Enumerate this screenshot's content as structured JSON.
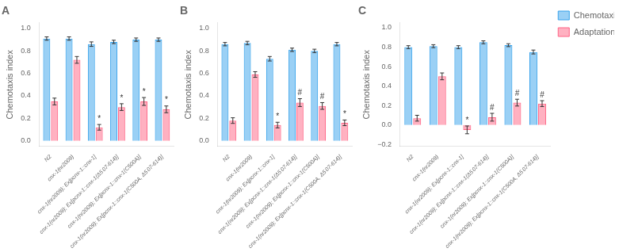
{
  "chart_data": [
    {
      "type": "bar",
      "title": "A",
      "ylabel": "Chemotaxis index",
      "categories": [
        "N2",
        "cnx-1(nr2009)",
        "cnx-1(nr2009); Ex[pcnx-1::cnx-1]",
        "cnx-1(nr2009); Ex[pcnx-1::cnx-1(Δ5 07-614)]",
        "cnx-1(nr2009); Ex[pcnx-1::cnx-1(C500A)]",
        "cnx-1(nr2009); Ex[pcnx-1::cnx-1(C500A, Δ5 07-614)]"
      ],
      "series": [
        {
          "name": "Chemotaxis",
          "values": [
            0.91,
            0.91,
            0.86,
            0.88,
            0.9,
            0.9
          ],
          "errors": [
            0.015,
            0.015,
            0.02,
            0.015,
            0.015,
            0.015
          ]
        },
        {
          "name": "Adaptation",
          "values": [
            0.35,
            0.72,
            0.12,
            0.3,
            0.35,
            0.28
          ],
          "errors": [
            0.03,
            0.03,
            0.025,
            0.03,
            0.035,
            0.03
          ],
          "annotations": [
            null,
            null,
            "*",
            "*",
            "*",
            "*"
          ]
        }
      ],
      "ylim": [
        -0.05,
        1.05
      ],
      "yticks": [
        {
          "value": 0,
          "label": "0.0"
        },
        0.2,
        0.4,
        0.6,
        0.8,
        {
          "value": 1.0,
          "label": "1.0"
        }
      ],
      "grid": false
    },
    {
      "type": "bar",
      "title": "B",
      "ylabel": "Chemotaxis index",
      "categories": [
        "N2",
        "cnx-1(nr2009)",
        "cnx-1(nr2009); Ex[pcnx-1::cnx-1]",
        "cnx-1(nr2009); Ex[pcnx-1::cnx-1(Δ5 07-614)]",
        "cnx-1(nr2009); Ex[pcnx-1::cnx-1(C500A)]",
        "cnx-1(nr2009); Ex[pcnx-1::cnx-1(C500A, Δ5 07-614)]"
      ],
      "series": [
        {
          "name": "Chemotaxis",
          "values": [
            0.86,
            0.87,
            0.73,
            0.81,
            0.8,
            0.86
          ],
          "errors": [
            0.015,
            0.015,
            0.02,
            0.015,
            0.015,
            0.015
          ]
        },
        {
          "name": "Adaptation",
          "values": [
            0.18,
            0.59,
            0.14,
            0.34,
            0.31,
            0.16
          ],
          "errors": [
            0.025,
            0.025,
            0.025,
            0.035,
            0.03,
            0.025
          ],
          "annotations": [
            null,
            null,
            "*",
            "#",
            "#",
            "*"
          ]
        }
      ],
      "ylim": [
        -0.05,
        1.05
      ],
      "yticks": [
        {
          "value": 0,
          "label": "0.0"
        },
        0.2,
        0.4,
        0.6,
        0.8,
        {
          "value": 1.0,
          "label": "1.0"
        }
      ],
      "grid": false
    },
    {
      "type": "bar",
      "title": "C",
      "ylabel": "Chemotaxis index",
      "categories": [
        "N2",
        "cnx-1(nr2009)",
        "cnx-1(nr2009); Ex[pcnx-1::cnx-1]",
        "cnx-1(nr2009); Ex[pcnx-1::cnx-1(Δ5 07-614)]",
        "cnx-1(nr2009); Ex[pcnx-1::cnx-1(C500A)]",
        "cnx-1(nr2009); Ex[pcnx-1::cnx-1(C500A, Δ5 07-614)]"
      ],
      "series": [
        {
          "name": "Chemotaxis",
          "values": [
            0.8,
            0.81,
            0.8,
            0.85,
            0.82,
            0.75
          ],
          "errors": [
            0.015,
            0.015,
            0.015,
            0.015,
            0.015,
            0.02
          ]
        },
        {
          "name": "Adaptation",
          "values": [
            0.07,
            0.5,
            -0.05,
            0.08,
            0.23,
            0.22
          ],
          "errors": [
            0.03,
            0.035,
            0.04,
            0.04,
            0.035,
            0.03
          ],
          "annotations": [
            null,
            null,
            "*",
            "#",
            "#",
            "#"
          ]
        }
      ],
      "ylim": [
        -0.22,
        1.05
      ],
      "yticks": [
        {
          "value": -0.2,
          "label": "−0.2"
        },
        {
          "value": 0,
          "label": "0.0"
        },
        0.2,
        0.4,
        0.6,
        0.8,
        {
          "value": 1.0,
          "label": "1.0"
        }
      ],
      "grid": false,
      "legend": "right"
    }
  ]
}
